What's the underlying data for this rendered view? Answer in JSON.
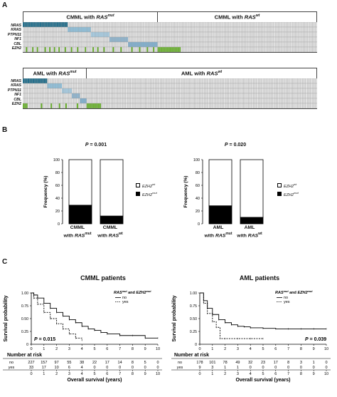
{
  "panel_labels": {
    "a": "A",
    "b": "B",
    "c": "C"
  },
  "panel_a": {
    "genes": [
      "NRAS",
      "KRAS",
      "PTPN11",
      "NF1",
      "CBL",
      "EZH2"
    ],
    "cmml": {
      "mut_title_main": "CMML with ",
      "mut_title_ras": "RAS",
      "mut_title_sup": "mut",
      "wt_title_main": "CMML with ",
      "wt_title_ras": "RAS",
      "wt_title_sup": "wt"
    },
    "aml": {
      "mut_title_main": "AML with ",
      "mut_title_ras": "RAS",
      "mut_title_sup": "mut",
      "wt_title_main": "AML with ",
      "wt_title_ras": "RAS",
      "wt_title_sup": "wt"
    },
    "colors": {
      "nras": "#1f6e8c",
      "kras": "#8fc1dc",
      "ptpn11": "#a7cde3",
      "nf1": "#8fb6d0",
      "cbl": "#7fb0d0",
      "ezh2": "#6cb52e",
      "empty": "#e3e3e3",
      "grid": "#9a9a9a"
    }
  },
  "panel_b": {
    "chart_data": [
      {
        "type": "bar",
        "pvalue_label": "P",
        "pvalue": "= 0.001",
        "ylabel": "Frequency (%)",
        "ylim": [
          0,
          100
        ],
        "yticks": [
          "0",
          "20",
          "40",
          "60",
          "80",
          "100"
        ],
        "categories": [
          {
            "line1": "CMML",
            "line2": "with ",
            "ras": "RAS",
            "sup": "mut"
          },
          {
            "line1": "CMML",
            "line2": "with ",
            "ras": "RAS",
            "sup": "wt"
          }
        ],
        "series": [
          {
            "name": "EZH2mut",
            "values": [
              29,
              12
            ]
          },
          {
            "name": "EZH2wt",
            "values": [
              71,
              88
            ]
          }
        ],
        "legend": [
          {
            "main": "EZH2",
            "sup": "wt",
            "fill": "#ffffff"
          },
          {
            "main": "EZH2",
            "sup": "mut",
            "fill": "#000000"
          }
        ]
      },
      {
        "type": "bar",
        "pvalue_label": "P",
        "pvalue": "= 0.020",
        "ylabel": "Frequency (%)",
        "ylim": [
          0,
          100
        ],
        "yticks": [
          "0",
          "20",
          "40",
          "60",
          "80",
          "100"
        ],
        "categories": [
          {
            "line1": "AML",
            "line2": "with ",
            "ras": "RAS",
            "sup": "mut"
          },
          {
            "line1": "AML",
            "line2": "with ",
            "ras": "RAS",
            "sup": "wt"
          }
        ],
        "series": [
          {
            "name": "EZH2mut",
            "values": [
              28,
              10
            ]
          },
          {
            "name": "EZH2wt",
            "values": [
              72,
              90
            ]
          }
        ],
        "legend": [
          {
            "main": "EZH2",
            "sup": "wt",
            "fill": "#ffffff"
          },
          {
            "main": "EZH2",
            "sup": "mut",
            "fill": "#000000"
          }
        ]
      }
    ]
  },
  "panel_c": {
    "chart_data": [
      {
        "type": "line",
        "title": "CMML patients",
        "ylabel": "Survival probability",
        "xlabel": "Overall survival (years)",
        "ylim": [
          0,
          1.0
        ],
        "yticks": [
          "0",
          "0.25",
          "0.50",
          "0.75",
          "1.00"
        ],
        "xlim": [
          0,
          10
        ],
        "xticks": [
          "0",
          "1",
          "2",
          "3",
          "4",
          "5",
          "6",
          "7",
          "8",
          "9",
          "10"
        ],
        "legend_title": {
          "a": "RAS",
          "a_sup": "mut",
          "mid": " and ",
          "b": "EZH2",
          "b_sup": "mut"
        },
        "legend": [
          {
            "name": "no",
            "style": "solid"
          },
          {
            "name": "yes",
            "style": "dashed"
          }
        ],
        "pvalue_label": "P",
        "pvalue": "= 0.015",
        "series": [
          {
            "name": "no",
            "x": [
              0,
              0.2,
              0.5,
              1,
              1.5,
              2,
              2.5,
              3,
              3.5,
              4,
              4.5,
              5,
              5.5,
              6,
              7,
              8,
              9,
              10
            ],
            "y": [
              1.0,
              0.96,
              0.9,
              0.8,
              0.7,
              0.62,
              0.55,
              0.48,
              0.42,
              0.35,
              0.3,
              0.27,
              0.23,
              0.2,
              0.17,
              0.17,
              0.12,
              0.12
            ]
          },
          {
            "name": "yes",
            "x": [
              0,
              0.2,
              0.5,
              1,
              1.5,
              2,
              2.5,
              3,
              3.5,
              4
            ],
            "y": [
              1.0,
              0.9,
              0.78,
              0.62,
              0.5,
              0.4,
              0.3,
              0.2,
              0.12,
              0.08
            ]
          }
        ],
        "risk_title": "Number at risk",
        "risk_rows": [
          {
            "label": "no",
            "values": [
              "227",
              "157",
              "97",
              "55",
              "38",
              "22",
              "17",
              "14",
              "8",
              "5",
              "0"
            ]
          },
          {
            "label": "yes",
            "values": [
              "33",
              "17",
              "10",
              "6",
              "4",
              "0",
              "0",
              "0",
              "0",
              "0",
              "0"
            ]
          }
        ]
      },
      {
        "type": "line",
        "title": "AML patients",
        "ylabel": "Survival probability",
        "xlabel": "Overall survival (years)",
        "ylim": [
          0,
          1.0
        ],
        "yticks": [
          "0",
          "0.25",
          "0.50",
          "0.75",
          "1.00"
        ],
        "xlim": [
          0,
          10
        ],
        "xticks": [
          "0",
          "1",
          "2",
          "3",
          "4",
          "5",
          "6",
          "7",
          "8",
          "9",
          "10"
        ],
        "legend_title": {
          "a": "RAS",
          "a_sup": "mut",
          "mid": " and ",
          "b": "EZH2",
          "b_sup": "mut"
        },
        "legend": [
          {
            "name": "no",
            "style": "solid"
          },
          {
            "name": "yes",
            "style": "dashed"
          }
        ],
        "pvalue_label": "P",
        "pvalue": "= 0.039",
        "series": [
          {
            "name": "no",
            "x": [
              0,
              0.3,
              0.6,
              1,
              1.5,
              2,
              2.5,
              3,
              3.5,
              4,
              5,
              6,
              7,
              8,
              9,
              10
            ],
            "y": [
              1.0,
              0.85,
              0.7,
              0.58,
              0.48,
              0.42,
              0.38,
              0.35,
              0.34,
              0.32,
              0.31,
              0.3,
              0.3,
              0.3,
              0.3,
              0.3
            ]
          },
          {
            "name": "yes",
            "x": [
              0,
              0.3,
              0.6,
              1,
              1.3,
              1.6,
              2,
              3,
              4,
              5
            ],
            "y": [
              1.0,
              0.8,
              0.6,
              0.44,
              0.33,
              0.11,
              0.11,
              0.11,
              0.11,
              0.11
            ]
          }
        ],
        "risk_title": "Number at risk",
        "risk_rows": [
          {
            "label": "no",
            "values": [
              "178",
              "101",
              "78",
              "49",
              "32",
              "23",
              "17",
              "8",
              "3",
              "1",
              "0"
            ]
          },
          {
            "label": "yes",
            "values": [
              "9",
              "3",
              "1",
              "1",
              "0",
              "0",
              "0",
              "0",
              "0",
              "0",
              "0"
            ]
          }
        ]
      }
    ]
  }
}
